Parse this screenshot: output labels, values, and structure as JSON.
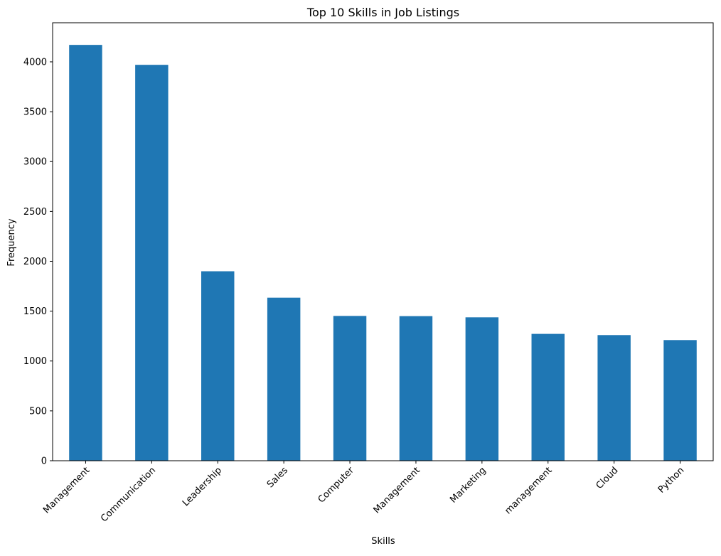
{
  "chart_data": {
    "type": "bar",
    "title": "Top 10 Skills in Job Listings",
    "xlabel": "Skills",
    "ylabel": "Frequency",
    "categories": [
      "Management",
      "Communication",
      "Leadership",
      "Sales",
      "Computer",
      "Management",
      "Marketing",
      "management",
      "Cloud",
      "Python"
    ],
    "values": [
      4170,
      3970,
      1900,
      1635,
      1452,
      1450,
      1438,
      1272,
      1260,
      1210
    ],
    "ylim": [
      0,
      4392
    ],
    "yticks": [
      0,
      500,
      1000,
      1500,
      2000,
      2500,
      3000,
      3500,
      4000
    ],
    "grid": false,
    "legend": "none",
    "bar_color": "#1f77b4"
  }
}
